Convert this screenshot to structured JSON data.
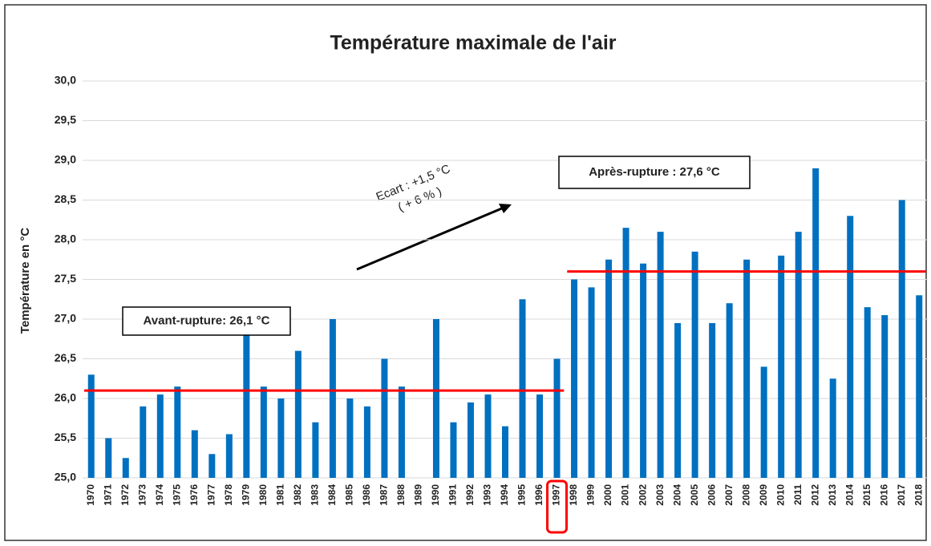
{
  "chart_data": {
    "type": "bar",
    "title": "Température maximale de l'air",
    "y_label": "Température  en °C",
    "categories": [
      "1970",
      "1971",
      "1972",
      "1973",
      "1974",
      "1975",
      "1976",
      "1977",
      "1978",
      "1979",
      "1980",
      "1981",
      "1982",
      "1983",
      "1984",
      "1985",
      "1986",
      "1987",
      "1988",
      "1989",
      "1990",
      "1991",
      "1992",
      "1993",
      "1994",
      "1995",
      "1996",
      "1997",
      "1998",
      "1999",
      "2000",
      "2001",
      "2002",
      "2003",
      "2004",
      "2005",
      "2006",
      "2007",
      "2008",
      "2009",
      "2010",
      "2011",
      "2012",
      "2013",
      "2014",
      "2015",
      "2016",
      "2017",
      "2018"
    ],
    "values": [
      26.3,
      25.5,
      25.25,
      25.9,
      26.05,
      26.15,
      25.6,
      25.3,
      25.55,
      26.8,
      26.15,
      26.0,
      26.6,
      25.7,
      27.0,
      26.0,
      25.9,
      26.5,
      26.15,
      null,
      27.0,
      25.7,
      25.95,
      26.05,
      25.65,
      27.25,
      26.05,
      26.5,
      27.5,
      27.4,
      27.75,
      28.15,
      27.7,
      28.1,
      26.95,
      27.85,
      26.95,
      27.2,
      27.75,
      26.4,
      27.8,
      28.1,
      28.9,
      26.25,
      28.3,
      27.15,
      27.05,
      28.5,
      27.3
    ],
    "color": "#0070c0",
    "ylim": [
      25,
      30
    ],
    "yticks": [
      {
        "value": 25,
        "label": "25,0"
      },
      {
        "value": 25.5,
        "label": "25,5"
      },
      {
        "value": 26,
        "label": "26,0"
      },
      {
        "value": 26.5,
        "label": "26,5"
      },
      {
        "value": 27,
        "label": "27,0"
      },
      {
        "value": 27.5,
        "label": "27,5"
      },
      {
        "value": 28,
        "label": "28,0"
      },
      {
        "value": 28.5,
        "label": "28,5"
      },
      {
        "value": 29,
        "label": "29,0"
      },
      {
        "value": 29.5,
        "label": "29,5"
      },
      {
        "value": 30,
        "label": "30,0"
      }
    ],
    "grid": true,
    "mean_lines": [
      {
        "label": "Avant-rupture: 26,1 °C",
        "value": 26.1,
        "from": "1970",
        "to": "1997",
        "color": "#ff0000"
      },
      {
        "label": "Après-rupture : 27,6 °C",
        "value": 27.6,
        "from": "1998",
        "to": "2018",
        "color": "#ff0000"
      }
    ],
    "annotation": [
      "Ecart : +1,5 °C",
      "( + 6 % )"
    ],
    "highlight": "1997"
  }
}
